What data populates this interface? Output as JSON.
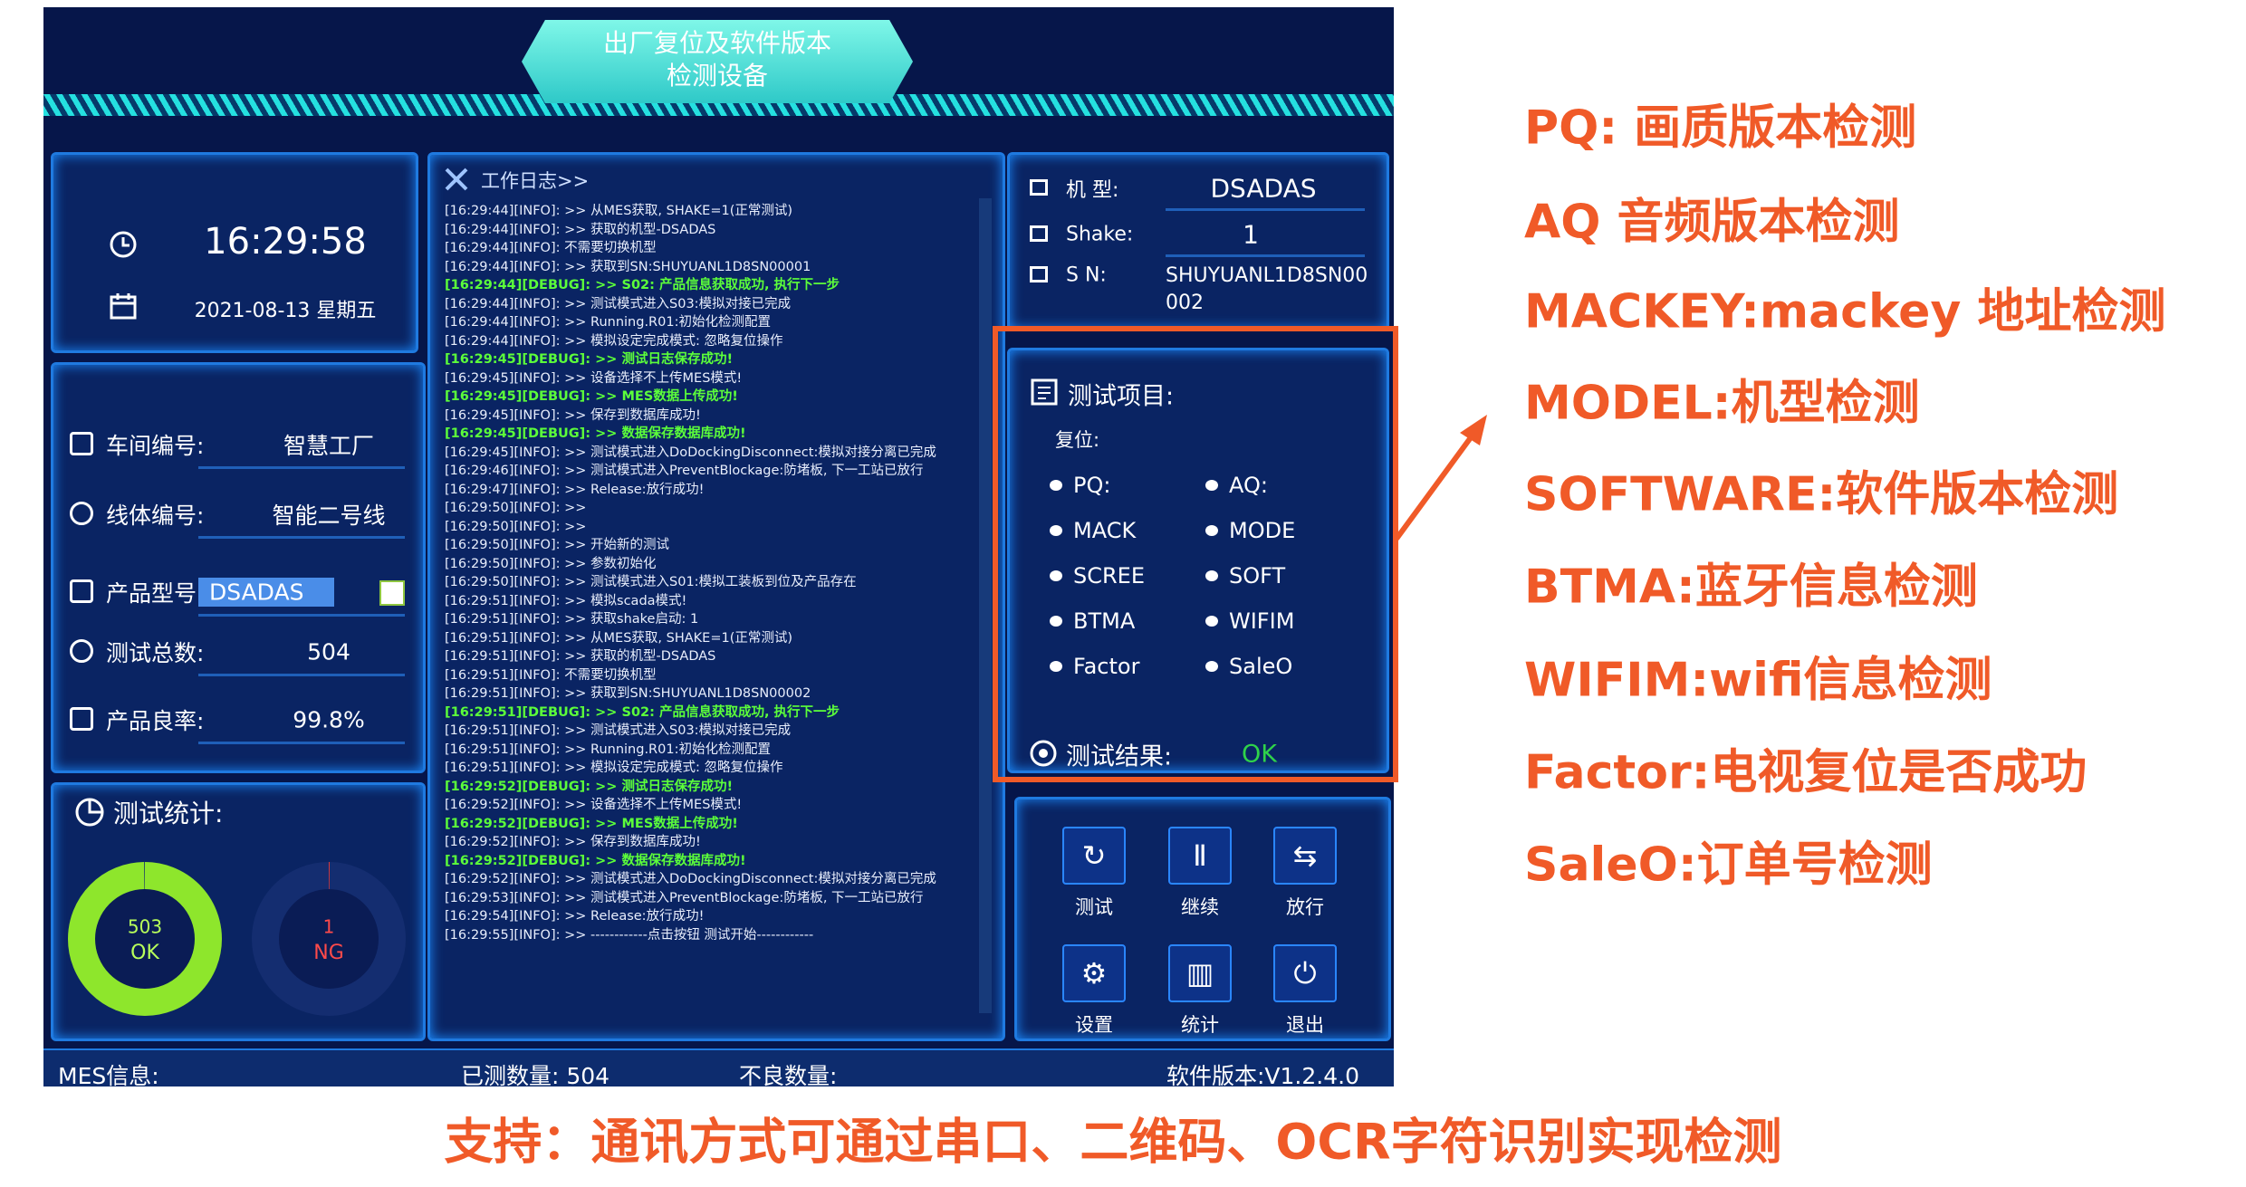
{
  "app": {
    "title": [
      "出厂复位及软件版本",
      "检测设备"
    ]
  },
  "clock": {
    "time": "16:29:58",
    "date": "2021-08-13  星期五"
  },
  "info": [
    {
      "label": "车间编号:",
      "value": "智慧工厂"
    },
    {
      "label": "线体编号:",
      "value": "智能二号线"
    },
    {
      "label": "产品型号:",
      "value": "DSADAS"
    },
    {
      "label": "测试总数:",
      "value": "504"
    },
    {
      "label": "产品良率:",
      "value": "99.8%"
    }
  ],
  "stats": {
    "title": "测试统计:",
    "ok": {
      "count": 503,
      "label": "OK"
    },
    "ng": {
      "count": 1,
      "label": "NG"
    }
  },
  "log": {
    "title": "工作日志>>",
    "lines": [
      "[16:29:44][INFO]: >> 从MES获取, SHAKE=1(正常测试)",
      "[16:29:44][INFO]: >> 获取的机型-DSADAS",
      "[16:29:44][INFO]: 不需要切换机型",
      "[16:29:44][INFO]: >> 获取到SN:SHUYUANL1D8SN00001",
      "[16:29:44][DEBUG]: >> S02: 产品信息获取成功, 执行下一步",
      "[16:29:44][INFO]: >> 测试模式进入S03:模拟对接已完成",
      "[16:29:44][INFO]: >> Running.R01:初始化检测配置",
      "[16:29:44][INFO]: >> 模拟设定完成模式: 忽略复位操作",
      "[16:29:45][DEBUG]: >> 测试日志保存成功!",
      "[16:29:45][INFO]: >> 设备选择不上传MES模式!",
      "[16:29:45][DEBUG]: >> MES数据上传成功!",
      "[16:29:45][INFO]: >> 保存到数据库成功!",
      "[16:29:45][DEBUG]: >> 数据保存数据库成功!",
      "[16:29:45][INFO]: >> 测试模式进入DoDockingDisconnect:模拟对接分离已完成",
      "[16:29:46][INFO]: >> 测试模式进入PreventBlockage:防堵板, 下一工站已放行",
      "[16:29:47][INFO]: >> Release:放行成功!",
      "[16:29:50][INFO]: >>",
      "[16:29:50][INFO]: >>",
      "[16:29:50][INFO]: >> 开始新的测试",
      "[16:29:50][INFO]: >> 参数初始化",
      "[16:29:50][INFO]: >> 测试模式进入S01:模拟工装板到位及产品存在",
      "[16:29:51][INFO]: >> 模拟scada模式!",
      "[16:29:51][INFO]: >> 获取shake启动: 1",
      "[16:29:51][INFO]: >> 从MES获取, SHAKE=1(正常测试)",
      "[16:29:51][INFO]: >> 获取的机型-DSADAS",
      "[16:29:51][INFO]: 不需要切换机型",
      "[16:29:51][INFO]: >> 获取到SN:SHUYUANL1D8SN00002",
      "[16:29:51][DEBUG]: >> S02: 产品信息获取成功, 执行下一步",
      "[16:29:51][INFO]: >> 测试模式进入S03:模拟对接已完成",
      "[16:29:51][INFO]: >> Running.R01:初始化检测配置",
      "[16:29:51][INFO]: >> 模拟设定完成模式: 忽略复位操作",
      "[16:29:52][DEBUG]: >> 测试日志保存成功!",
      "[16:29:52][INFO]: >> 设备选择不上传MES模式!",
      "[16:29:52][DEBUG]: >> MES数据上传成功!",
      "[16:29:52][INFO]: >> 保存到数据库成功!",
      "[16:29:52][DEBUG]: >> 数据保存数据库成功!",
      "[16:29:52][INFO]: >> 测试模式进入DoDockingDisconnect:模拟对接分离已完成",
      "[16:29:53][INFO]: >> 测试模式进入PreventBlockage:防堵板, 下一工站已放行",
      "[16:29:54][INFO]: >> Release:放行成功!",
      "[16:29:55][INFO]: >> ------------点击按钮 测试开始------------"
    ]
  },
  "device": [
    {
      "label": "机 型:",
      "value": "DSADAS"
    },
    {
      "label": "Shake:",
      "value": "1"
    },
    {
      "label": "S N:",
      "value": "SHUYUANL1D8SN00002"
    }
  ],
  "test_items": {
    "title": "测试项目:",
    "reset_label": "复位:",
    "items": [
      "PQ:",
      "AQ:",
      "MACK",
      "MODE",
      "SCREE",
      "SOFT",
      "BTMA",
      "WIFIM",
      "Factor",
      "SaleO"
    ],
    "result_label": "测试结果:",
    "result": "OK"
  },
  "buttons": [
    "测试",
    "继续",
    "放行",
    "设置",
    "统计",
    "退出"
  ],
  "status_bar": [
    "MES信息:",
    "已测数量: 504",
    "不良数量:",
    "软件版本:V1.2.4.0"
  ],
  "annotations": [
    "PQ: 画质版本检测",
    "AQ 音频版本检测",
    "MACKEY:mackey 地址检测",
    "MODEL:机型检测",
    "SOFTWARE:软件版本检测",
    "BTMA:蓝牙信息检测",
    "WIFIM:wifi信息检测",
    "Factor:电视复位是否成功",
    "SaleO:订单号检测"
  ],
  "footer": "支持：通讯方式可通过串口、二维码、OCR字符识别实现检测"
}
